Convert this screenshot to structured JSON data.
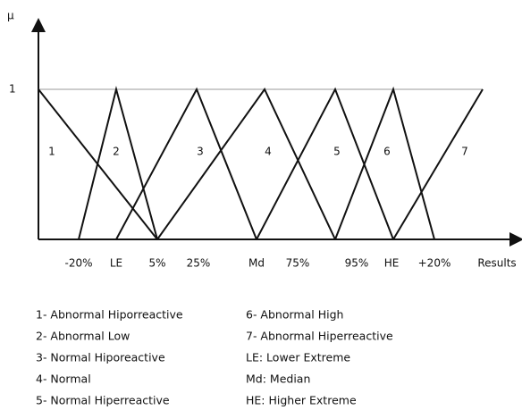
{
  "axes": {
    "y_label": "μ",
    "y_one": "1",
    "x_label": "Results"
  },
  "x_ticks": [
    "-20%",
    "LE",
    "5%",
    "25%",
    "Md",
    "75%",
    "95%",
    "HE",
    "+20%"
  ],
  "regions": [
    "1",
    "2",
    "3",
    "4",
    "5",
    "6",
    "7"
  ],
  "legend_left": [
    "1- Abnormal Hiporreactive",
    "2- Abnormal Low",
    "3- Normal Hiporeactive",
    "4- Normal",
    "5- Normal Hiperreactive"
  ],
  "legend_right": [
    "6- Abnormal High",
    "7- Abnormal Hiperreactive",
    "LE: Lower Extreme",
    "Md: Median",
    "HE: Higher Extreme"
  ]
}
